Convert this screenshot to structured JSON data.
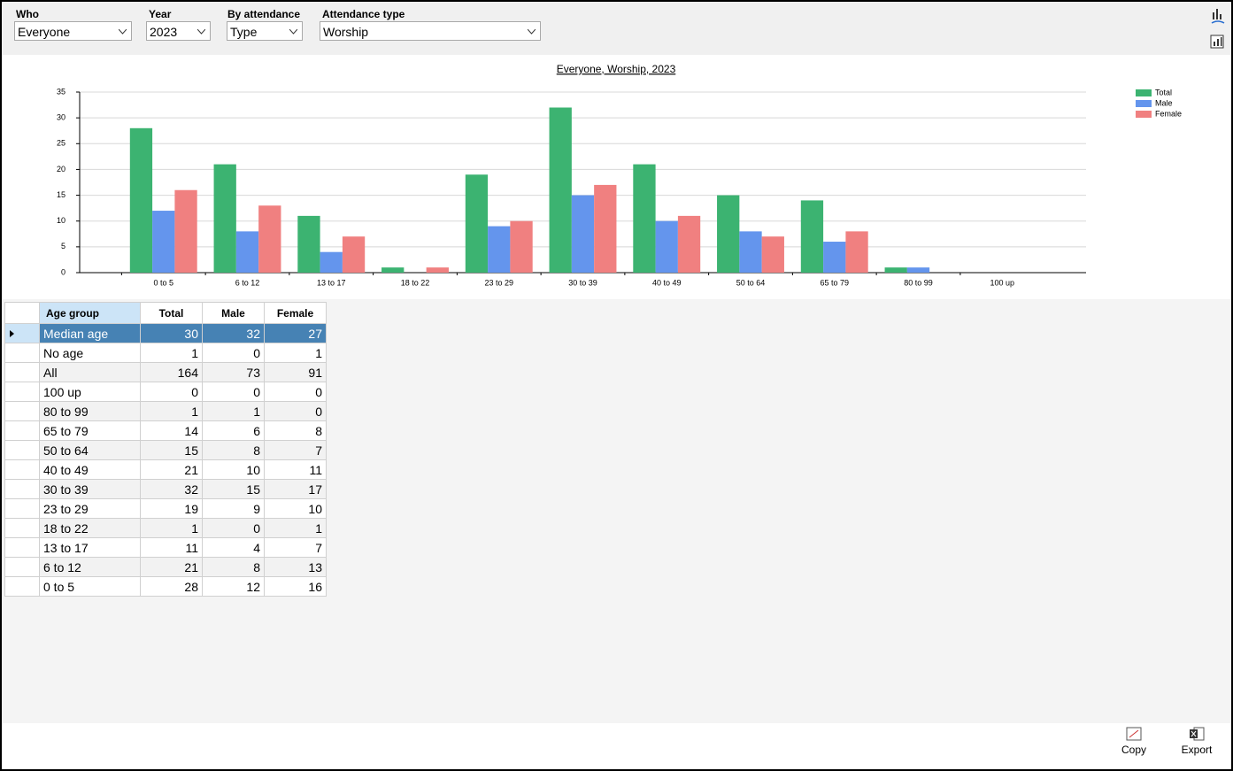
{
  "filters": [
    {
      "label": "Who",
      "value": "Everyone"
    },
    {
      "label": "Year",
      "value": "2023"
    },
    {
      "label": "By attendance",
      "value": "Type"
    },
    {
      "label": "Attendance type",
      "value": "Worship"
    }
  ],
  "chart_data": {
    "type": "bar",
    "title": "Everyone, Worship, 2023",
    "categories": [
      "0 to 5",
      "6 to 12",
      "13 to 17",
      "18 to 22",
      "23 to 29",
      "30 to 39",
      "40 to 49",
      "50 to 64",
      "65 to 79",
      "80 to 99",
      "100 up"
    ],
    "series": [
      {
        "name": "Total",
        "color": "#3cb371",
        "values": [
          28,
          21,
          11,
          1,
          19,
          32,
          21,
          15,
          14,
          1,
          0
        ]
      },
      {
        "name": "Male",
        "color": "#6495ed",
        "values": [
          12,
          8,
          4,
          0,
          9,
          15,
          10,
          8,
          6,
          1,
          0
        ]
      },
      {
        "name": "Female",
        "color": "#f08080",
        "values": [
          16,
          13,
          7,
          1,
          10,
          17,
          11,
          7,
          8,
          0,
          0
        ]
      }
    ],
    "ylim": [
      0,
      35
    ],
    "yticks": [
      0,
      5,
      10,
      15,
      20,
      25,
      30,
      35
    ],
    "grid": true,
    "legend": "top-right"
  },
  "table": {
    "columns": [
      "Age group",
      "Total",
      "Male",
      "Female"
    ],
    "rows": [
      [
        "Median age",
        30,
        32,
        27
      ],
      [
        "No age",
        1,
        0,
        1
      ],
      [
        "All",
        164,
        73,
        91
      ],
      [
        "100 up",
        0,
        0,
        0
      ],
      [
        "80 to 99",
        1,
        1,
        0
      ],
      [
        "65 to 79",
        14,
        6,
        8
      ],
      [
        "50 to 64",
        15,
        8,
        7
      ],
      [
        "40 to 49",
        21,
        10,
        11
      ],
      [
        "30 to 39",
        32,
        15,
        17
      ],
      [
        "23 to 29",
        19,
        9,
        10
      ],
      [
        "18 to 22",
        1,
        0,
        1
      ],
      [
        "13 to 17",
        11,
        4,
        7
      ],
      [
        "6 to 12",
        21,
        8,
        13
      ],
      [
        "0 to 5",
        28,
        12,
        16
      ]
    ]
  },
  "buttons": [
    "Copy",
    "Export"
  ]
}
